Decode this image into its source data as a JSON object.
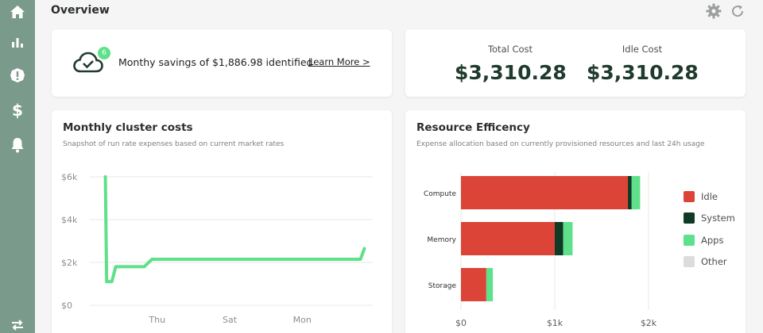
{
  "header": {
    "title": "Overview"
  },
  "sidebar": {
    "items": [
      {
        "icon": "home-icon"
      },
      {
        "icon": "bar-chart-icon"
      },
      {
        "icon": "alert-icon"
      },
      {
        "icon": "dollar-icon"
      },
      {
        "icon": "bell-icon"
      }
    ],
    "bottom_icon": "swap-arrows-icon"
  },
  "savings": {
    "badge_count": "6",
    "text": "Monthy savings of $1,886.98 identified",
    "link": "Learn More >"
  },
  "costs": {
    "total_label": "Total Cost",
    "total_value": "$3,310.28",
    "idle_label": "Idle Cost",
    "idle_value": "$3,310.28"
  },
  "cluster_costs": {
    "title": "Monthly cluster costs",
    "subtitle": "Snapshot of run rate expenses based on current market rates"
  },
  "resource_efficiency": {
    "title": "Resource Efficency",
    "subtitle": "Expense allocation based on currently provisioned resources and last 24h usage"
  },
  "colors": {
    "sidebar": "#7a9a8c",
    "idle": "#dc4437",
    "system": "#0f3a26",
    "apps": "#5fe08a",
    "other": "#dcdcdc",
    "heading_value": "#1f3b2e"
  },
  "chart_data": [
    {
      "type": "line",
      "title": "",
      "xlabel": "",
      "ylabel": "",
      "x_tick_labels": [
        "Thu",
        "Sat",
        "Mon"
      ],
      "y_tick_labels": [
        "$0",
        "$2k",
        "$4k",
        "$6k"
      ],
      "ylim": [
        0,
        6000
      ],
      "grid": true,
      "series": [
        {
          "color": "#5fe08a",
          "points": [
            {
              "x": 0.0,
              "y": 6000
            },
            {
              "x": 0.05,
              "y": 1100
            },
            {
              "x": 0.25,
              "y": 1100
            },
            {
              "x": 0.4,
              "y": 1800
            },
            {
              "x": 1.5,
              "y": 1800
            },
            {
              "x": 1.8,
              "y": 2150
            },
            {
              "x": 9.85,
              "y": 2150
            },
            {
              "x": 10.0,
              "y": 2650
            }
          ]
        }
      ],
      "x_ticks": [
        {
          "x": 2,
          "label": "Thu"
        },
        {
          "x": 4.8,
          "label": "Sat"
        },
        {
          "x": 7.6,
          "label": "Mon"
        }
      ],
      "xlim": [
        -0.6,
        10.2
      ]
    },
    {
      "type": "bar",
      "orientation": "horizontal",
      "stacked": true,
      "title": "",
      "categories": [
        "Compute",
        "Memory",
        "Storage"
      ],
      "x_tick_labels": [
        "$0",
        "$1k",
        "$2k"
      ],
      "xlim": [
        0,
        2000
      ],
      "legend": "right",
      "series": [
        {
          "name": "Idle",
          "color": "#dc4437",
          "values": [
            1780,
            1000,
            270
          ]
        },
        {
          "name": "System",
          "color": "#0f3a26",
          "values": [
            40,
            90,
            0
          ]
        },
        {
          "name": "Apps",
          "color": "#5fe08a",
          "values": [
            90,
            100,
            70
          ]
        },
        {
          "name": "Other",
          "color": "#dcdcdc",
          "values": [
            0,
            0,
            0
          ]
        }
      ]
    }
  ]
}
